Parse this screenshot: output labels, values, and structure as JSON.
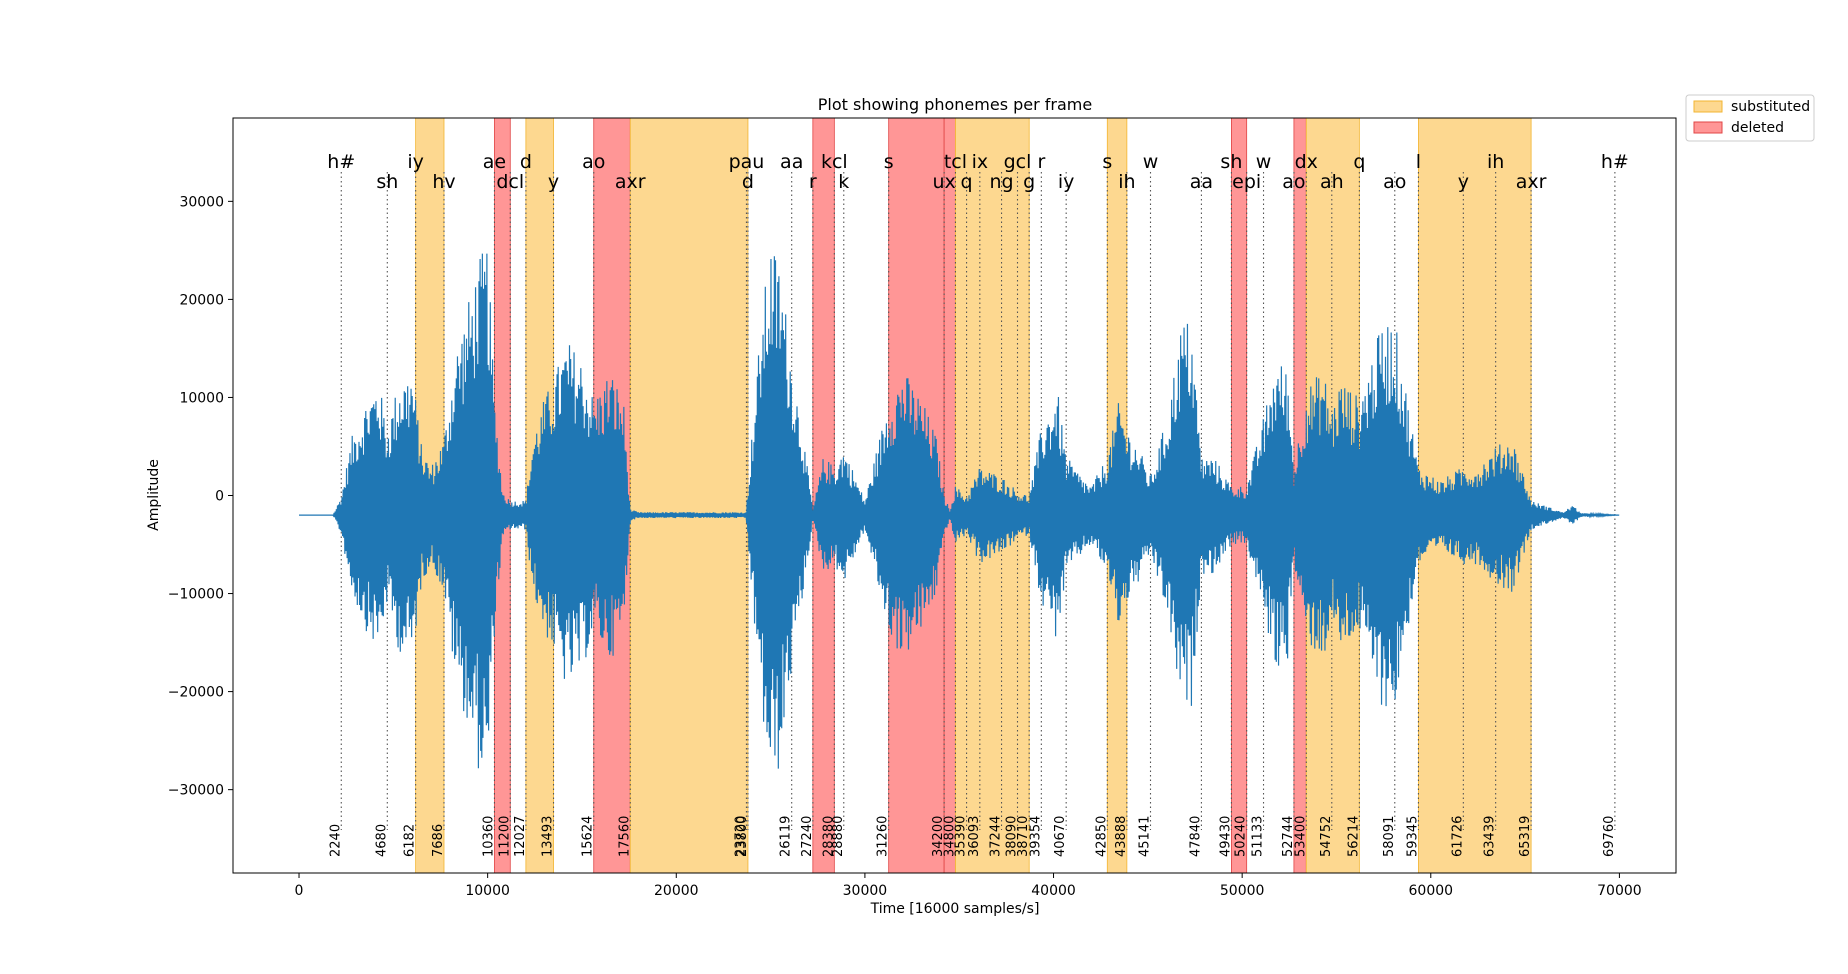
{
  "chart_data": {
    "type": "line",
    "title": "Plot showing phonemes per frame",
    "xlabel": "Time [16000 samples/s]",
    "ylabel": "Amplitude",
    "xlim": [
      -3500,
      73000
    ],
    "ylim": [
      -38500,
      38500
    ],
    "x_ticks": [
      0,
      10000,
      20000,
      30000,
      40000,
      50000,
      60000,
      70000
    ],
    "y_ticks": [
      -30000,
      -20000,
      -10000,
      0,
      10000,
      20000,
      30000
    ],
    "legend": {
      "placement": "outside top-right",
      "entries": [
        {
          "label": "substituted",
          "color": "#fdd890"
        },
        {
          "label": "deleted",
          "color": "#ff9696"
        }
      ]
    },
    "colors": {
      "waveform": "#1f77b4",
      "substituted_fill": "#fdd890",
      "substituted_edge": "#f2b531",
      "deleted_fill": "#ff9696",
      "deleted_edge": "#e04545",
      "boundary_line": "#555555"
    },
    "waveform": {
      "baseline": -2000,
      "start": 0,
      "end": 70000,
      "envelope": [
        [
          0,
          0
        ],
        [
          1800,
          0
        ],
        [
          2240,
          2000
        ],
        [
          2800,
          8000
        ],
        [
          3600,
          12000
        ],
        [
          4200,
          14000
        ],
        [
          4680,
          9000
        ],
        [
          5300,
          14000
        ],
        [
          6000,
          15000
        ],
        [
          6500,
          7000
        ],
        [
          7000,
          5000
        ],
        [
          7686,
          8000
        ],
        [
          8300,
          17000
        ],
        [
          9000,
          22000
        ],
        [
          9500,
          26000
        ],
        [
          10000,
          28000
        ],
        [
          10360,
          12000
        ],
        [
          10800,
          2500
        ],
        [
          11200,
          1500
        ],
        [
          12027,
          1500
        ],
        [
          12400,
          8000
        ],
        [
          13000,
          12000
        ],
        [
          13493,
          14000
        ],
        [
          14200,
          18000
        ],
        [
          15000,
          16000
        ],
        [
          15624,
          12000
        ],
        [
          16500,
          15000
        ],
        [
          17200,
          12000
        ],
        [
          17560,
          600
        ],
        [
          18000,
          300
        ],
        [
          20000,
          300
        ],
        [
          23000,
          300
        ],
        [
          23700,
          300
        ],
        [
          24000,
          8000
        ],
        [
          24500,
          20000
        ],
        [
          25000,
          28000
        ],
        [
          25500,
          26000
        ],
        [
          26119,
          16000
        ],
        [
          26600,
          10000
        ],
        [
          27240,
          600
        ],
        [
          27800,
          6000
        ],
        [
          28380,
          5000
        ],
        [
          28880,
          7000
        ],
        [
          29500,
          4000
        ],
        [
          30000,
          1500
        ],
        [
          31260,
          12000
        ],
        [
          32000,
          15000
        ],
        [
          33000,
          12000
        ],
        [
          33800,
          8000
        ],
        [
          34200,
          2000
        ],
        [
          34500,
          600
        ],
        [
          34800,
          3000
        ],
        [
          35390,
          2000
        ],
        [
          36093,
          5000
        ],
        [
          37244,
          4000
        ],
        [
          38090,
          2500
        ],
        [
          38710,
          2000
        ],
        [
          39354,
          9000
        ],
        [
          40200,
          13000
        ],
        [
          40670,
          6000
        ],
        [
          41500,
          4000
        ],
        [
          42000,
          3000
        ],
        [
          42850,
          6000
        ],
        [
          43500,
          12000
        ],
        [
          43888,
          9000
        ],
        [
          44500,
          7000
        ],
        [
          45141,
          4000
        ],
        [
          46000,
          10000
        ],
        [
          46800,
          20000
        ],
        [
          47300,
          20000
        ],
        [
          47840,
          6000
        ],
        [
          48500,
          6000
        ],
        [
          49430,
          3000
        ],
        [
          50240,
          3000
        ],
        [
          51133,
          10000
        ],
        [
          51800,
          16000
        ],
        [
          52400,
          15000
        ],
        [
          52744,
          5000
        ],
        [
          53400,
          13000
        ],
        [
          54300,
          15000
        ],
        [
          54752,
          11000
        ],
        [
          55200,
          14000
        ],
        [
          56214,
          12000
        ],
        [
          56800,
          16000
        ],
        [
          57500,
          20000
        ],
        [
          58091,
          20000
        ],
        [
          58600,
          14000
        ],
        [
          59345,
          5000
        ],
        [
          60500,
          3500
        ],
        [
          61726,
          5000
        ],
        [
          62500,
          5000
        ],
        [
          63439,
          7000
        ],
        [
          64300,
          8000
        ],
        [
          64800,
          5000
        ],
        [
          65319,
          1500
        ],
        [
          67000,
          300
        ],
        [
          67500,
          1000
        ],
        [
          68000,
          200
        ],
        [
          70000,
          0
        ]
      ]
    },
    "regions": [
      {
        "status": "substituted",
        "start": 6182,
        "end": 7686
      },
      {
        "status": "deleted",
        "start": 10360,
        "end": 11200
      },
      {
        "status": "substituted",
        "start": 12027,
        "end": 13493
      },
      {
        "status": "deleted",
        "start": 15624,
        "end": 17560
      },
      {
        "status": "substituted",
        "start": 17560,
        "end": 23800
      },
      {
        "status": "deleted",
        "start": 27240,
        "end": 28380
      },
      {
        "status": "deleted",
        "start": 31260,
        "end": 34200
      },
      {
        "status": "deleted",
        "start": 34200,
        "end": 34800
      },
      {
        "status": "substituted",
        "start": 34800,
        "end": 38710
      },
      {
        "status": "substituted",
        "start": 42850,
        "end": 43888
      },
      {
        "status": "deleted",
        "start": 49430,
        "end": 50240
      },
      {
        "status": "deleted",
        "start": 52744,
        "end": 53400
      },
      {
        "status": "substituted",
        "start": 53400,
        "end": 56214
      },
      {
        "status": "substituted",
        "start": 59345,
        "end": 65319
      }
    ],
    "boundaries": [
      {
        "x": 2240,
        "label": "2240"
      },
      {
        "x": 4680,
        "label": "4680"
      },
      {
        "x": 6182,
        "label": "6182"
      },
      {
        "x": 7686,
        "label": "7686"
      },
      {
        "x": 10360,
        "label": "10360"
      },
      {
        "x": 11200,
        "label": "11200"
      },
      {
        "x": 12027,
        "label": "12027"
      },
      {
        "x": 13493,
        "label": "13493"
      },
      {
        "x": 15624,
        "label": "15624"
      },
      {
        "x": 17560,
        "label": "17560"
      },
      {
        "x": 23720,
        "label": "23720"
      },
      {
        "x": 23800,
        "label": "23800"
      },
      {
        "x": 26119,
        "label": "26119"
      },
      {
        "x": 27240,
        "label": "27240"
      },
      {
        "x": 28380,
        "label": "28380"
      },
      {
        "x": 28880,
        "label": "28880"
      },
      {
        "x": 31260,
        "label": "31260"
      },
      {
        "x": 34200,
        "label": "34200"
      },
      {
        "x": 34800,
        "label": "34800"
      },
      {
        "x": 35390,
        "label": "35390"
      },
      {
        "x": 36093,
        "label": "36093"
      },
      {
        "x": 37244,
        "label": "37244"
      },
      {
        "x": 38090,
        "label": "38090"
      },
      {
        "x": 38710,
        "label": "38710"
      },
      {
        "x": 39354,
        "label": "39354"
      },
      {
        "x": 40670,
        "label": "40670"
      },
      {
        "x": 42850,
        "label": "42850"
      },
      {
        "x": 43888,
        "label": "43888"
      },
      {
        "x": 45141,
        "label": "45141"
      },
      {
        "x": 47840,
        "label": "47840"
      },
      {
        "x": 49430,
        "label": "49430"
      },
      {
        "x": 50240,
        "label": "50240"
      },
      {
        "x": 51133,
        "label": "51133"
      },
      {
        "x": 52744,
        "label": "52744"
      },
      {
        "x": 53400,
        "label": "53400"
      },
      {
        "x": 54752,
        "label": "54752"
      },
      {
        "x": 56214,
        "label": "56214"
      },
      {
        "x": 58091,
        "label": "58091"
      },
      {
        "x": 59345,
        "label": "59345"
      },
      {
        "x": 61726,
        "label": "61726"
      },
      {
        "x": 63439,
        "label": "63439"
      },
      {
        "x": 65319,
        "label": "65319"
      },
      {
        "x": 69760,
        "label": "69760"
      }
    ],
    "phonemes": [
      {
        "label": "h#",
        "x": 2240,
        "row": 1
      },
      {
        "label": "sh",
        "x": 4680,
        "row": 2
      },
      {
        "label": "iy",
        "x": 6182,
        "row": 1
      },
      {
        "label": "hv",
        "x": 7686,
        "row": 2
      },
      {
        "label": "ae",
        "x": 10360,
        "row": 1
      },
      {
        "label": "dcl",
        "x": 11200,
        "row": 2
      },
      {
        "label": "d",
        "x": 12027,
        "row": 1
      },
      {
        "label": "y",
        "x": 13493,
        "row": 2
      },
      {
        "label": "ao",
        "x": 15624,
        "row": 1
      },
      {
        "label": "axr",
        "x": 17560,
        "row": 2
      },
      {
        "label": "pau",
        "x": 23720,
        "row": 1
      },
      {
        "label": "d",
        "x": 23800,
        "row": 2
      },
      {
        "label": "aa",
        "x": 26119,
        "row": 1
      },
      {
        "label": "r",
        "x": 27240,
        "row": 2
      },
      {
        "label": "kcl",
        "x": 28380,
        "row": 1
      },
      {
        "label": "k",
        "x": 28880,
        "row": 2
      },
      {
        "label": "s",
        "x": 31260,
        "row": 1
      },
      {
        "label": "ux",
        "x": 34200,
        "row": 2
      },
      {
        "label": "tcl",
        "x": 34800,
        "row": 1
      },
      {
        "label": "q",
        "x": 35390,
        "row": 2
      },
      {
        "label": "ix",
        "x": 36093,
        "row": 1
      },
      {
        "label": "ng",
        "x": 37244,
        "row": 2
      },
      {
        "label": "gcl",
        "x": 38090,
        "row": 1
      },
      {
        "label": "g",
        "x": 38710,
        "row": 2
      },
      {
        "label": "r",
        "x": 39354,
        "row": 1
      },
      {
        "label": "iy",
        "x": 40670,
        "row": 2
      },
      {
        "label": "s",
        "x": 42850,
        "row": 1
      },
      {
        "label": "ih",
        "x": 43888,
        "row": 2
      },
      {
        "label": "w",
        "x": 45141,
        "row": 1
      },
      {
        "label": "aa",
        "x": 47840,
        "row": 2
      },
      {
        "label": "sh",
        "x": 49430,
        "row": 1
      },
      {
        "label": "epi",
        "x": 50240,
        "row": 2
      },
      {
        "label": "w",
        "x": 51133,
        "row": 1
      },
      {
        "label": "ao",
        "x": 52744,
        "row": 2
      },
      {
        "label": "dx",
        "x": 53400,
        "row": 1
      },
      {
        "label": "ah",
        "x": 54752,
        "row": 2
      },
      {
        "label": "q",
        "x": 56214,
        "row": 1
      },
      {
        "label": "ao",
        "x": 58091,
        "row": 2
      },
      {
        "label": "l",
        "x": 59345,
        "row": 1
      },
      {
        "label": "y",
        "x": 61726,
        "row": 2
      },
      {
        "label": "ih",
        "x": 63439,
        "row": 1
      },
      {
        "label": "axr",
        "x": 65319,
        "row": 2
      },
      {
        "label": "h#",
        "x": 69760,
        "row": 1
      }
    ]
  }
}
